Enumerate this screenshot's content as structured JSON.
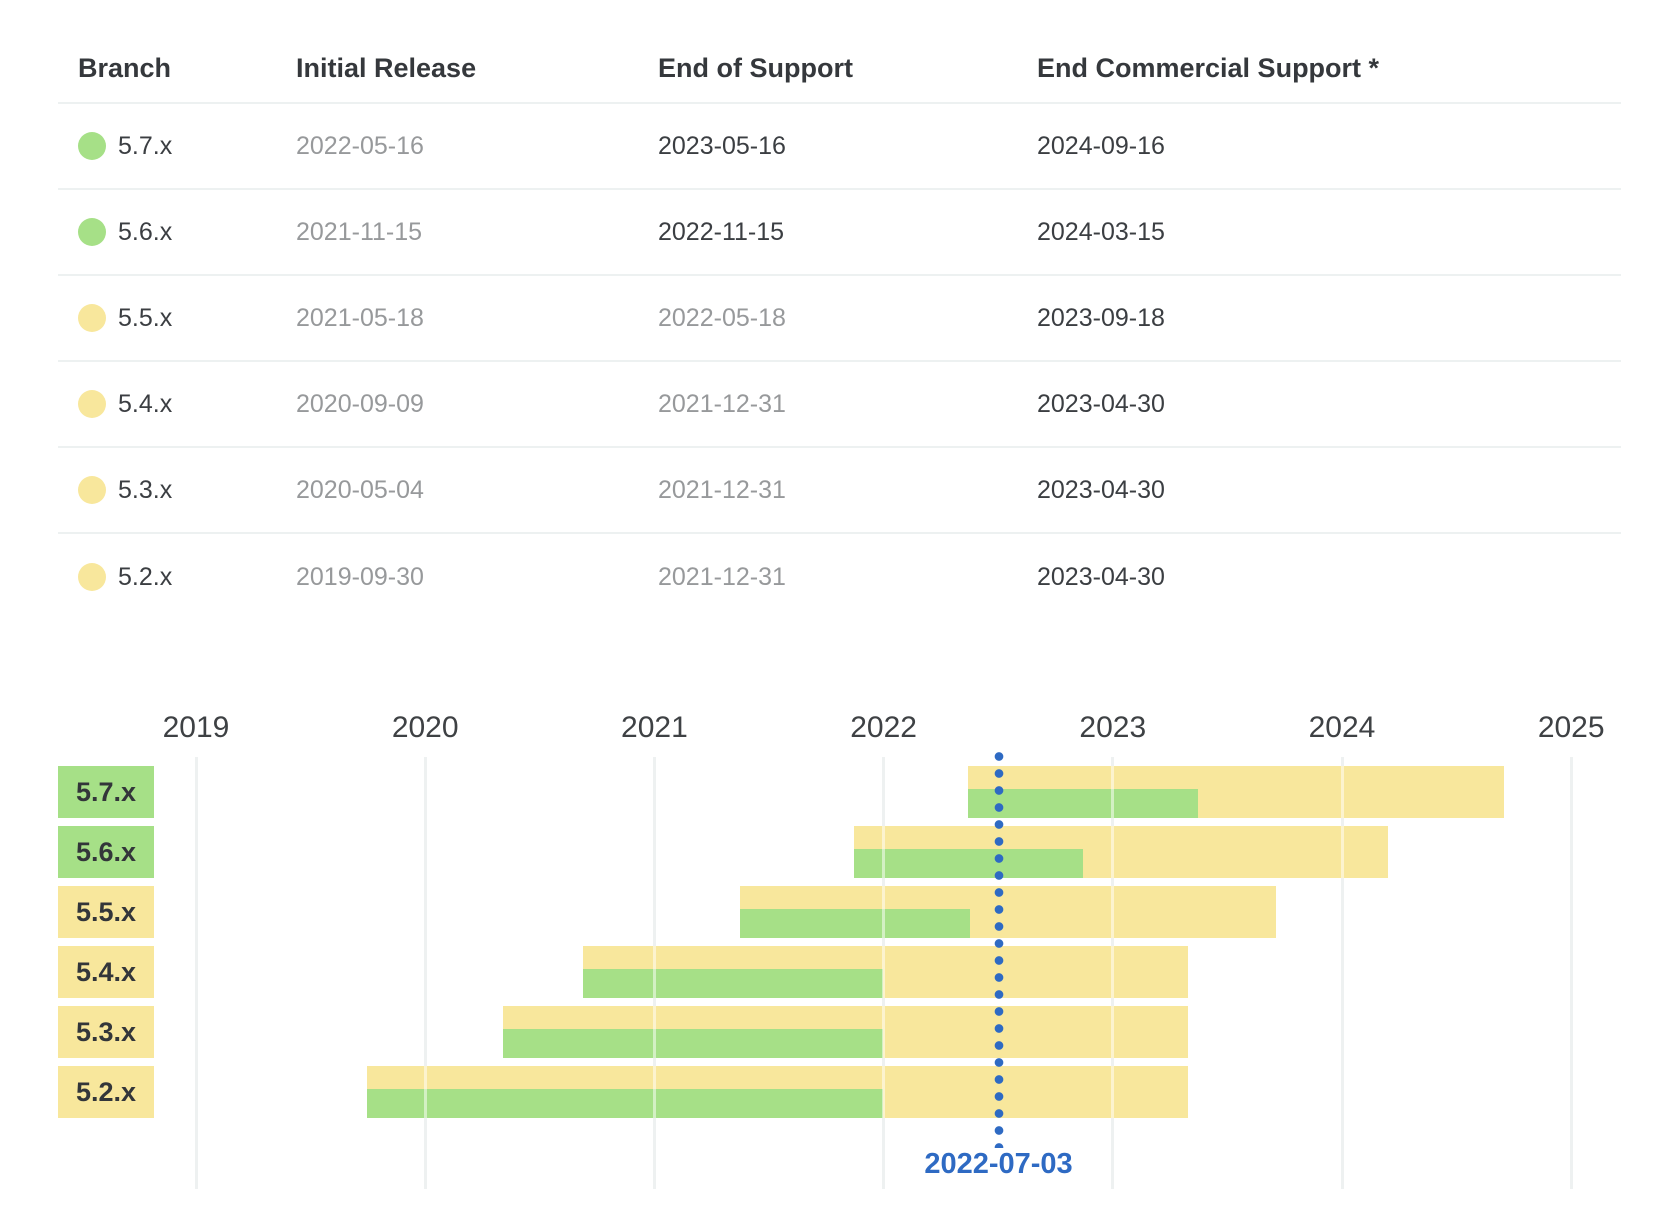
{
  "table": {
    "columns": [
      "Branch",
      "Initial Release",
      "End of Support",
      "End Commercial Support *"
    ],
    "rows": [
      {
        "branch": "5.7.x",
        "status_color": "green",
        "initial_release": "2022-05-16",
        "end_of_support": "2023-05-16",
        "end_commercial_support": "2024-09-16"
      },
      {
        "branch": "5.6.x",
        "status_color": "green",
        "initial_release": "2021-11-15",
        "end_of_support": "2022-11-15",
        "end_commercial_support": "2024-03-15"
      },
      {
        "branch": "5.5.x",
        "status_color": "yellow",
        "initial_release": "2021-05-18",
        "end_of_support": "2022-05-18",
        "end_commercial_support": "2023-09-18"
      },
      {
        "branch": "5.4.x",
        "status_color": "yellow",
        "initial_release": "2020-09-09",
        "end_of_support": "2021-12-31",
        "end_commercial_support": "2023-04-30"
      },
      {
        "branch": "5.3.x",
        "status_color": "yellow",
        "initial_release": "2020-05-04",
        "end_of_support": "2021-12-31",
        "end_commercial_support": "2023-04-30"
      },
      {
        "branch": "5.2.x",
        "status_color": "yellow",
        "initial_release": "2019-09-30",
        "end_of_support": "2021-12-31",
        "end_commercial_support": "2023-04-30"
      }
    ]
  },
  "chart_data": {
    "type": "gantt",
    "x_axis_years": [
      "2019",
      "2020",
      "2021",
      "2022",
      "2023",
      "2024",
      "2025"
    ],
    "x_range": [
      "2019-01-01",
      "2025-01-01"
    ],
    "grid": true,
    "today_marker": {
      "date": "2022-07-03",
      "label": "2022-07-03"
    },
    "rows": [
      {
        "label": "5.7.x",
        "label_color": "green",
        "start": "2022-05-16",
        "active_support_until": "2023-05-16",
        "commercial_support_until": "2024-09-16"
      },
      {
        "label": "5.6.x",
        "label_color": "green",
        "start": "2021-11-15",
        "active_support_until": "2022-11-15",
        "commercial_support_until": "2024-03-15"
      },
      {
        "label": "5.5.x",
        "label_color": "yellow",
        "start": "2021-05-18",
        "active_support_until": "2022-05-18",
        "commercial_support_until": "2023-09-18"
      },
      {
        "label": "5.4.x",
        "label_color": "yellow",
        "start": "2020-09-09",
        "active_support_until": "2021-12-31",
        "commercial_support_until": "2023-04-30"
      },
      {
        "label": "5.3.x",
        "label_color": "yellow",
        "start": "2020-05-04",
        "active_support_until": "2021-12-31",
        "commercial_support_until": "2023-04-30"
      },
      {
        "label": "5.2.x",
        "label_color": "yellow",
        "start": "2019-09-30",
        "active_support_until": "2021-12-31",
        "commercial_support_until": "2023-04-30"
      }
    ],
    "series_colors": {
      "active_support": "#a6e087",
      "commercial_support": "#f8e79c"
    }
  },
  "colors": {
    "green": "#a6e087",
    "yellow": "#f8e79c",
    "blue": "#2e6ac3",
    "text_dark": "#3b3e42",
    "text_gray": "#97999b",
    "divider": "#edf1f1",
    "grid": "#dce3e3"
  }
}
